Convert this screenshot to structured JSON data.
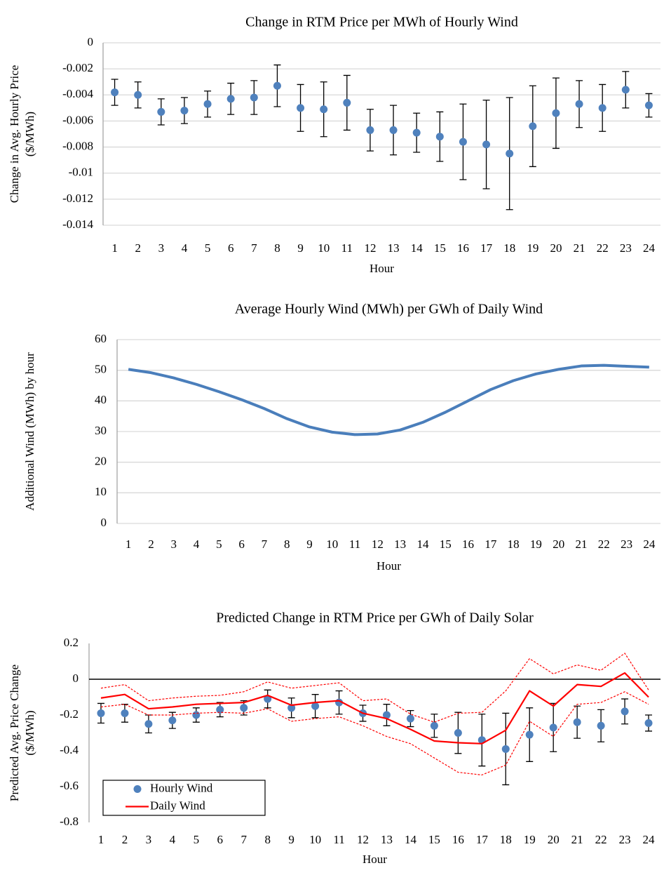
{
  "chart_data": [
    {
      "type": "scatter",
      "title": "Change in RTM Price per MWh of Hourly Wind",
      "xlabel": "Hour",
      "ylabel": [
        "Change in Avg. Hourly Price",
        "($/MWh)"
      ],
      "categories": [
        1,
        2,
        3,
        4,
        5,
        6,
        7,
        8,
        9,
        10,
        11,
        12,
        13,
        14,
        15,
        16,
        17,
        18,
        19,
        20,
        21,
        22,
        23,
        24
      ],
      "series": [
        {
          "type": "scatter",
          "color": "#4f81bd",
          "values": [
            -0.0038,
            -0.004,
            -0.0053,
            -0.0052,
            -0.0047,
            -0.0043,
            -0.0042,
            -0.0033,
            -0.005,
            -0.0051,
            -0.0046,
            -0.0067,
            -0.0067,
            -0.0069,
            -0.0072,
            -0.0076,
            -0.0078,
            -0.0085,
            -0.0064,
            -0.0054,
            -0.0047,
            -0.005,
            -0.0036,
            -0.0048
          ],
          "errors": [
            0.001,
            0.001,
            0.001,
            0.001,
            0.001,
            0.0012,
            0.0013,
            0.0016,
            0.0018,
            0.0021,
            0.0021,
            0.0016,
            0.0019,
            0.0015,
            0.0019,
            0.0029,
            0.0034,
            0.0043,
            0.0031,
            0.0027,
            0.0018,
            0.0018,
            0.0014,
            0.0009
          ]
        }
      ],
      "ylim": [
        -0.014,
        0
      ],
      "yticks": [
        0,
        -0.002,
        -0.004,
        -0.006,
        -0.008,
        -0.01,
        -0.012,
        -0.014
      ],
      "grid": true
    },
    {
      "type": "line",
      "title": "Average Hourly Wind (MWh) per GWh of Daily Wind",
      "xlabel": "Hour",
      "ylabel": [
        "Additional Wind (MWh) by hour"
      ],
      "categories": [
        1,
        2,
        3,
        4,
        5,
        6,
        7,
        8,
        9,
        10,
        11,
        12,
        13,
        14,
        15,
        16,
        17,
        18,
        19,
        20,
        21,
        22,
        23,
        24
      ],
      "series": [
        {
          "type": "line",
          "color": "#4a7ebb",
          "values": [
            50.3,
            49.2,
            47.5,
            45.4,
            43.0,
            40.4,
            37.5,
            34.2,
            31.5,
            29.8,
            29.0,
            29.2,
            30.5,
            33.0,
            36.3,
            40.0,
            43.7,
            46.6,
            48.8,
            50.3,
            51.4,
            51.6,
            51.3,
            51.0
          ]
        }
      ],
      "ylim": [
        0,
        60
      ],
      "yticks": [
        0,
        10,
        20,
        30,
        40,
        50,
        60
      ],
      "grid": true
    },
    {
      "type": "combo",
      "title": "Predicted Change in RTM Price per GWh of Daily Solar",
      "xlabel": "Hour",
      "ylabel": [
        "Predicted Avg. Price Change",
        "($/MWh)"
      ],
      "categories": [
        1,
        2,
        3,
        4,
        5,
        6,
        7,
        8,
        9,
        10,
        11,
        12,
        13,
        14,
        15,
        16,
        17,
        18,
        19,
        20,
        21,
        22,
        23,
        24
      ],
      "series": [
        {
          "type": "scatter",
          "name": "Hourly Wind",
          "color": "#4f81bd",
          "values": [
            -0.19,
            -0.19,
            -0.25,
            -0.23,
            -0.2,
            -0.17,
            -0.16,
            -0.11,
            -0.16,
            -0.15,
            -0.13,
            -0.19,
            -0.2,
            -0.22,
            -0.26,
            -0.3,
            -0.34,
            -0.39,
            -0.31,
            -0.27,
            -0.24,
            -0.26,
            -0.18,
            -0.245
          ],
          "errors": [
            0.055,
            0.05,
            0.05,
            0.045,
            0.04,
            0.04,
            0.04,
            0.05,
            0.055,
            0.065,
            0.065,
            0.045,
            0.06,
            0.045,
            0.065,
            0.115,
            0.145,
            0.2,
            0.15,
            0.135,
            0.09,
            0.09,
            0.07,
            0.045
          ]
        },
        {
          "type": "line",
          "name": "Daily Wind",
          "color": "#ff0000",
          "values": [
            -0.105,
            -0.085,
            -0.165,
            -0.155,
            -0.14,
            -0.135,
            -0.13,
            -0.09,
            -0.145,
            -0.13,
            -0.12,
            -0.19,
            -0.22,
            -0.28,
            -0.345,
            -0.355,
            -0.36,
            -0.285,
            -0.065,
            -0.15,
            -0.03,
            -0.04,
            0.035,
            -0.1
          ],
          "upper": [
            -0.05,
            -0.03,
            -0.12,
            -0.105,
            -0.095,
            -0.09,
            -0.07,
            -0.015,
            -0.05,
            -0.035,
            -0.02,
            -0.12,
            -0.11,
            -0.195,
            -0.24,
            -0.19,
            -0.185,
            -0.065,
            0.115,
            0.03,
            0.08,
            0.05,
            0.145,
            -0.06
          ],
          "lower": [
            -0.155,
            -0.14,
            -0.2,
            -0.2,
            -0.19,
            -0.185,
            -0.19,
            -0.165,
            -0.235,
            -0.22,
            -0.21,
            -0.26,
            -0.32,
            -0.36,
            -0.44,
            -0.52,
            -0.535,
            -0.48,
            -0.235,
            -0.32,
            -0.14,
            -0.13,
            -0.07,
            -0.14
          ]
        }
      ],
      "ylim": [
        -0.8,
        0.2
      ],
      "yticks": [
        0.2,
        0,
        -0.2,
        -0.4,
        -0.6,
        -0.8
      ],
      "grid": false,
      "legend": "lower left"
    }
  ]
}
